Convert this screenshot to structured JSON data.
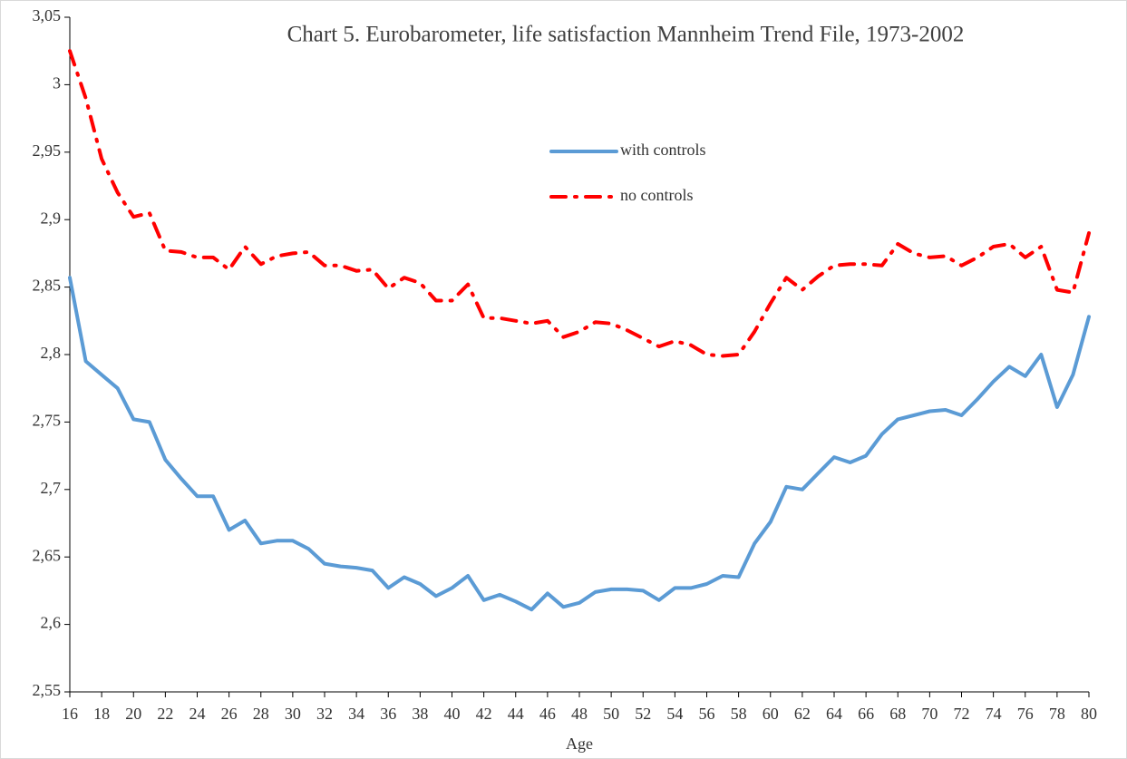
{
  "chart_data": {
    "type": "line",
    "title": "Chart 5. Eurobarometer, life satisfaction Mannheim Trend File, 1973-2002",
    "xlabel": "Age",
    "x": [
      16,
      17,
      18,
      19,
      20,
      21,
      22,
      23,
      24,
      25,
      26,
      27,
      28,
      29,
      30,
      31,
      32,
      33,
      34,
      35,
      36,
      37,
      38,
      39,
      40,
      41,
      42,
      43,
      44,
      45,
      46,
      47,
      48,
      49,
      50,
      51,
      52,
      53,
      54,
      55,
      56,
      57,
      58,
      59,
      60,
      61,
      62,
      63,
      64,
      65,
      66,
      67,
      68,
      69,
      70,
      71,
      72,
      73,
      74,
      75,
      76,
      77,
      78,
      79,
      80
    ],
    "series": [
      {
        "name": "with controls",
        "color": "#5b9bd5",
        "values": [
          2.857,
          2.795,
          2.785,
          2.775,
          2.752,
          2.75,
          2.722,
          2.708,
          2.695,
          2.695,
          2.67,
          2.677,
          2.66,
          2.662,
          2.662,
          2.656,
          2.645,
          2.643,
          2.642,
          2.64,
          2.627,
          2.635,
          2.63,
          2.621,
          2.627,
          2.636,
          2.618,
          2.622,
          2.617,
          2.611,
          2.623,
          2.613,
          2.616,
          2.624,
          2.626,
          2.626,
          2.625,
          2.618,
          2.627,
          2.627,
          2.63,
          2.636,
          2.635,
          2.66,
          2.676,
          2.702,
          2.7,
          2.712,
          2.724,
          2.72,
          2.725,
          2.741,
          2.752,
          2.755,
          2.758,
          2.759,
          2.755,
          2.767,
          2.78,
          2.791,
          2.784,
          2.8,
          2.761,
          2.785,
          2.828
        ]
      },
      {
        "name": "no controls",
        "color": "#ff0000",
        "dashed": true,
        "values": [
          3.025,
          2.99,
          2.945,
          2.92,
          2.902,
          2.905,
          2.877,
          2.876,
          2.872,
          2.872,
          2.863,
          2.88,
          2.867,
          2.873,
          2.875,
          2.876,
          2.866,
          2.866,
          2.862,
          2.863,
          2.849,
          2.857,
          2.853,
          2.84,
          2.84,
          2.852,
          2.827,
          2.827,
          2.825,
          2.823,
          2.825,
          2.813,
          2.817,
          2.824,
          2.823,
          2.818,
          2.812,
          2.806,
          2.81,
          2.807,
          2.8,
          2.799,
          2.8,
          2.817,
          2.838,
          2.857,
          2.848,
          2.858,
          2.866,
          2.867,
          2.867,
          2.866,
          2.882,
          2.875,
          2.872,
          2.873,
          2.866,
          2.872,
          2.88,
          2.882,
          2.872,
          2.88,
          2.848,
          2.846,
          2.89
        ]
      }
    ],
    "xlim": [
      16,
      80
    ],
    "xticks": [
      16,
      18,
      20,
      22,
      24,
      26,
      28,
      30,
      32,
      34,
      36,
      38,
      40,
      42,
      44,
      46,
      48,
      50,
      52,
      54,
      56,
      58,
      60,
      62,
      64,
      66,
      68,
      70,
      72,
      74,
      76,
      78,
      80
    ],
    "ylim": [
      2.55,
      3.05
    ],
    "yticks": [
      {
        "value": 2.55,
        "label": "2,55"
      },
      {
        "value": 2.6,
        "label": "2,6"
      },
      {
        "value": 2.65,
        "label": "2,65"
      },
      {
        "value": 2.7,
        "label": "2,7"
      },
      {
        "value": 2.75,
        "label": "2,75"
      },
      {
        "value": 2.8,
        "label": "2,8"
      },
      {
        "value": 2.85,
        "label": "2,85"
      },
      {
        "value": 2.9,
        "label": "2,9"
      },
      {
        "value": 2.95,
        "label": "2,95"
      },
      3,
      {
        "value": 3.05,
        "label": "3,05"
      }
    ]
  }
}
